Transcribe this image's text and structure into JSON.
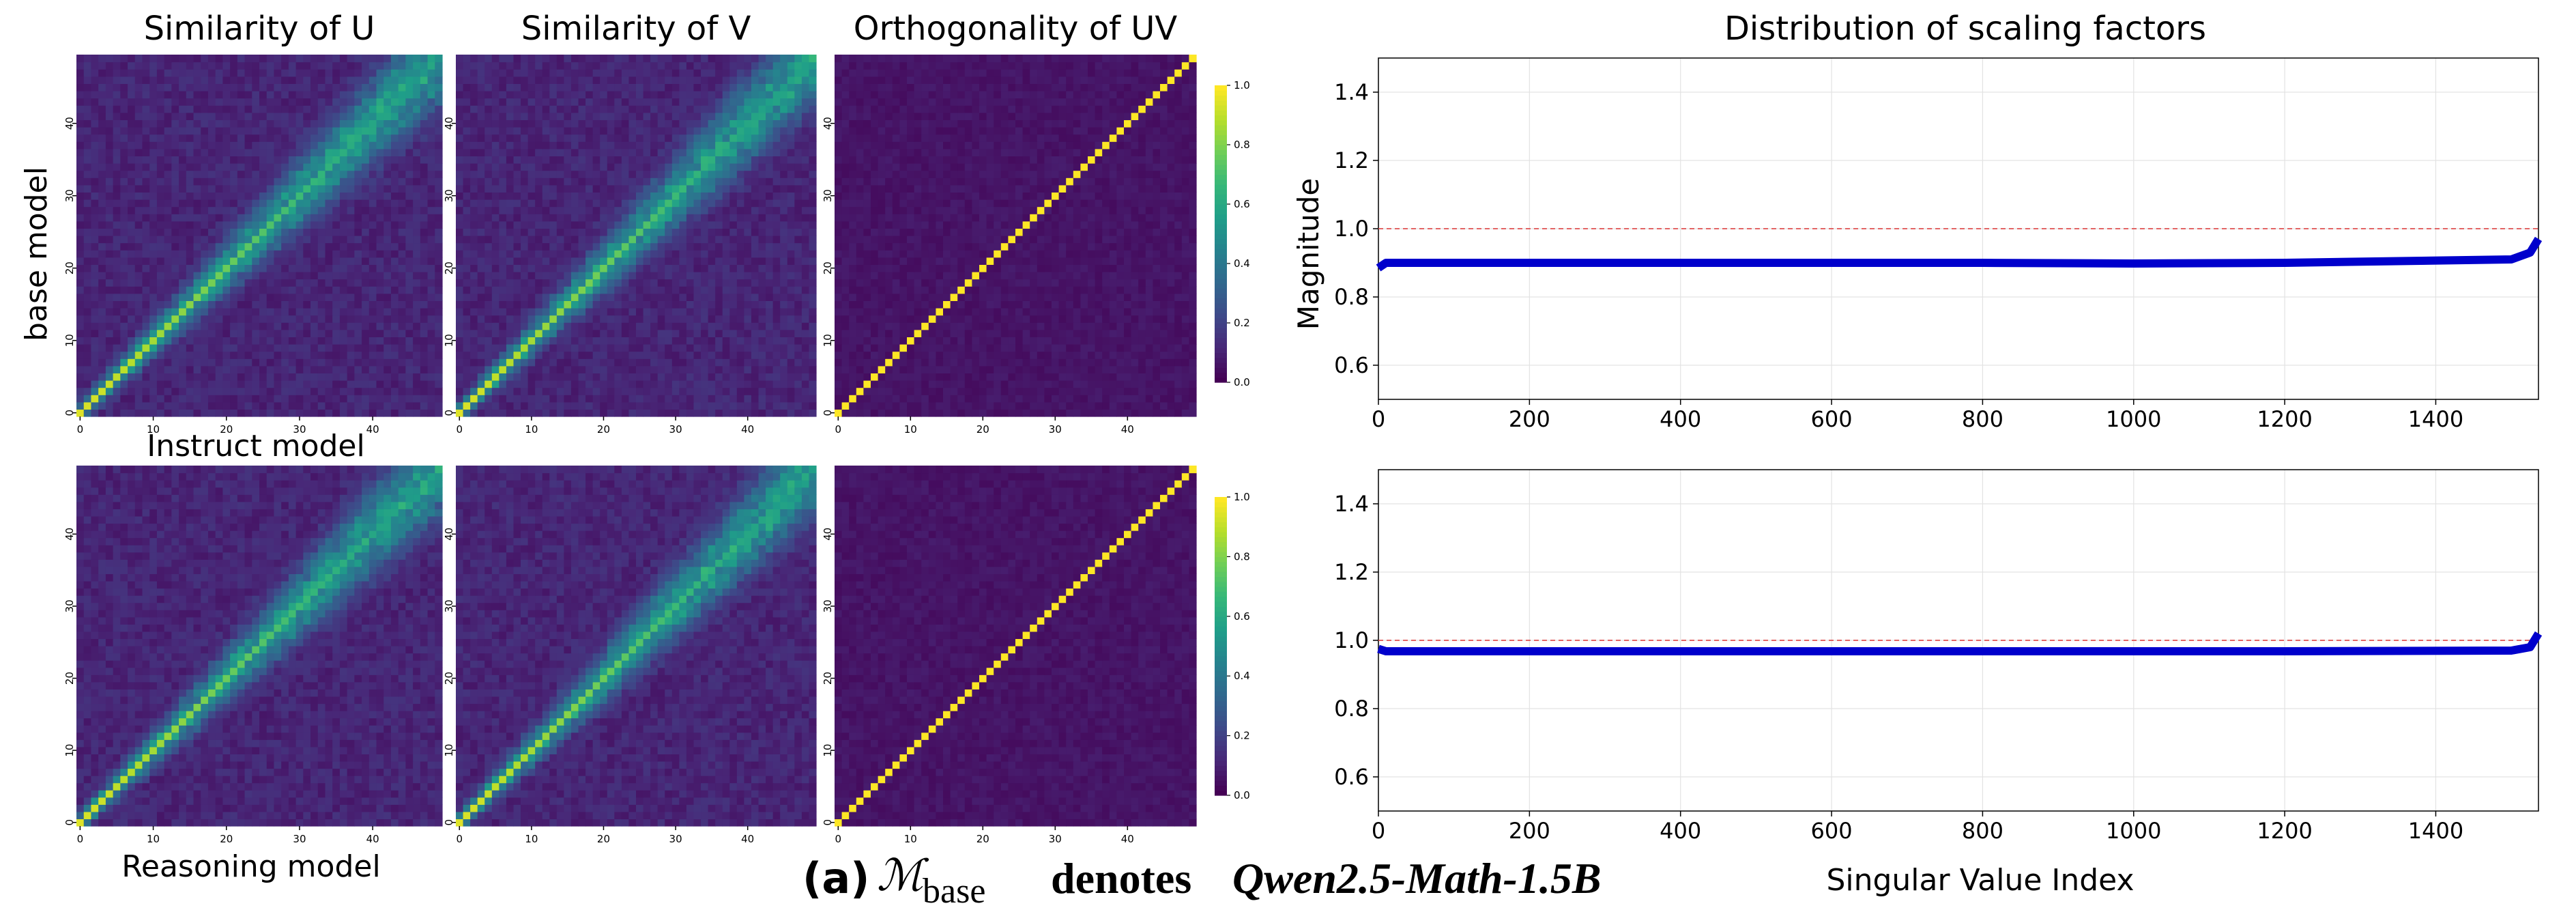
{
  "chart_data": {
    "type": "heatmap",
    "row_labels": [
      "base model",
      "Instruct model"
    ],
    "x_label": "Reasoning model",
    "heatmaps": [
      {
        "row": 0,
        "title": "Similarity of U",
        "kind": "similarity",
        "size": 50,
        "ticks": [
          0,
          10,
          20,
          30,
          40
        ]
      },
      {
        "row": 0,
        "title": "Similarity of V",
        "kind": "similarity",
        "size": 50,
        "ticks": [
          0,
          10,
          20,
          30,
          40
        ]
      },
      {
        "row": 0,
        "title": "Orthogonality of UV",
        "kind": "orthogonality",
        "size": 50,
        "ticks": [
          0,
          10,
          20,
          30,
          40
        ]
      },
      {
        "row": 1,
        "title": "",
        "kind": "similarity",
        "size": 50,
        "ticks": [
          0,
          10,
          20,
          30,
          40
        ]
      },
      {
        "row": 1,
        "title": "",
        "kind": "similarity",
        "size": 50,
        "ticks": [
          0,
          10,
          20,
          30,
          40
        ]
      },
      {
        "row": 1,
        "title": "",
        "kind": "orthogonality",
        "size": 50,
        "ticks": [
          0,
          10,
          20,
          30,
          40
        ]
      }
    ],
    "colorbar": {
      "min": 0.0,
      "max": 1.0,
      "ticks": [
        "0.0",
        "0.2",
        "0.4",
        "0.6",
        "0.8",
        "1.0"
      ],
      "colormap": "viridis"
    },
    "scaling": {
      "type": "line",
      "title": "Distribution of scaling factors",
      "xlabel": "Singular Value Index",
      "ylabel": "Magnitude",
      "xlim": [
        0,
        1536
      ],
      "ylim": [
        0.5,
        1.5
      ],
      "xticks": [
        0,
        200,
        400,
        600,
        800,
        1000,
        1200,
        1400
      ],
      "yticks": [
        0.6,
        0.8,
        1.0,
        1.2,
        1.4
      ],
      "reference_line": 1.0,
      "line_color": "#0000cc",
      "reference_color": "#e05050",
      "series": [
        {
          "name": "base model",
          "points": [
            [
              0,
              0.885
            ],
            [
              10,
              0.9
            ],
            [
              400,
              0.9
            ],
            [
              800,
              0.9
            ],
            [
              1000,
              0.898
            ],
            [
              1200,
              0.9
            ],
            [
              1500,
              0.91
            ],
            [
              1525,
              0.93
            ],
            [
              1536,
              0.97
            ]
          ]
        },
        {
          "name": "Instruct model",
          "points": [
            [
              0,
              0.975
            ],
            [
              10,
              0.968
            ],
            [
              400,
              0.968
            ],
            [
              800,
              0.968
            ],
            [
              1200,
              0.968
            ],
            [
              1500,
              0.97
            ],
            [
              1525,
              0.98
            ],
            [
              1536,
              1.02
            ]
          ]
        }
      ]
    },
    "caption": {
      "prefix": "(a)",
      "middle": "denotes",
      "model": "Qwen2.5-Math-1.5B"
    }
  }
}
